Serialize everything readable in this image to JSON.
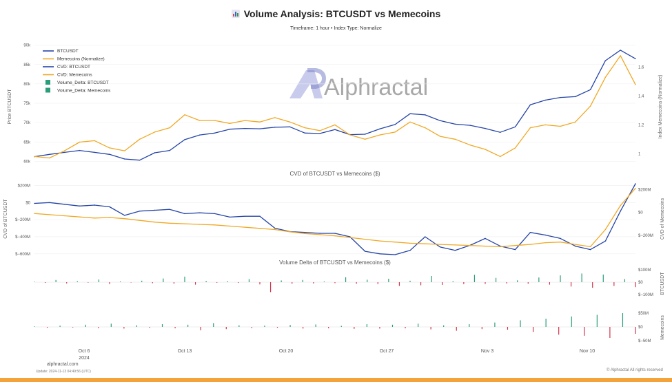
{
  "header": {
    "title": "Volume Analysis: BTCUSDT vs Memecoins",
    "subtitle": "Timeframe: 1 hour  •  Index Type: Normalize"
  },
  "watermark": {
    "text": "Alphractal"
  },
  "footer": {
    "site": "alphractal.com",
    "update": "Update: 2024-11-13 04:49:56 (UTC)",
    "rights": "© Alphractal All rights reserved"
  },
  "colors": {
    "btc": "#2444a6",
    "meme": "#f0a823",
    "pos": "#2a9d7a",
    "neg": "#d0344c",
    "grid": "#eeeeee",
    "accent": "#f4a23a"
  },
  "x_axis": {
    "ticks": [
      "Oct 6",
      "Oct 13",
      "Oct 20",
      "Oct 27",
      "Nov 3",
      "Nov 10"
    ],
    "year": "2024"
  },
  "chart_data": [
    {
      "id": "price",
      "type": "line",
      "title": "",
      "ylabel": "Price BTCUSDT",
      "y2label": "Index Memecoins (Normalize)",
      "ylim": [
        59000,
        91000
      ],
      "y2lim": [
        0.92,
        1.78
      ],
      "yticks": [
        "60k",
        "65k",
        "70k",
        "75k",
        "80k",
        "85k",
        "90k"
      ],
      "y2ticks": [
        "1",
        "1.2",
        "1.4",
        "1.6"
      ],
      "x": [
        "Oct 4",
        "Oct 5",
        "Oct 6",
        "Oct 7",
        "Oct 8",
        "Oct 9",
        "Oct 10",
        "Oct 11",
        "Oct 12",
        "Oct 13",
        "Oct 14",
        "Oct 15",
        "Oct 16",
        "Oct 17",
        "Oct 18",
        "Oct 19",
        "Oct 20",
        "Oct 21",
        "Oct 22",
        "Oct 23",
        "Oct 24",
        "Oct 25",
        "Oct 26",
        "Oct 27",
        "Oct 28",
        "Oct 29",
        "Oct 30",
        "Oct 31",
        "Nov 1",
        "Nov 2",
        "Nov 3",
        "Nov 4",
        "Nov 5",
        "Nov 6",
        "Nov 7",
        "Nov 8",
        "Nov 9",
        "Nov 10",
        "Nov 11",
        "Nov 12",
        "Nov 13"
      ],
      "legend": [
        "BTCUSDT",
        "Memecoins (Normalize)",
        "CVD: BTCUSDT",
        "CVD: Memecoins",
        "Volume_Delta: BTCUSDT",
        "Volume_Delta: Memecoins"
      ],
      "series": [
        {
          "name": "BTCUSDT",
          "axis": "left",
          "values": [
            61200,
            61800,
            62300,
            62800,
            62300,
            61800,
            60600,
            60300,
            62200,
            62800,
            65600,
            66800,
            67300,
            68300,
            68500,
            68400,
            68800,
            68900,
            67300,
            67200,
            68200,
            66900,
            67000,
            68400,
            69500,
            72300,
            72000,
            70500,
            69600,
            69300,
            68500,
            67500,
            68900,
            74600,
            75800,
            76500,
            76700,
            78500,
            86000,
            88700,
            86500
          ]
        },
        {
          "name": "Memecoins (Normalize)",
          "axis": "right",
          "values": [
            0.98,
            0.97,
            1.02,
            1.08,
            1.09,
            1.04,
            1.02,
            1.1,
            1.15,
            1.18,
            1.27,
            1.23,
            1.23,
            1.21,
            1.23,
            1.22,
            1.25,
            1.22,
            1.18,
            1.16,
            1.2,
            1.13,
            1.1,
            1.13,
            1.15,
            1.22,
            1.18,
            1.12,
            1.1,
            1.06,
            1.03,
            0.98,
            1.04,
            1.18,
            1.2,
            1.19,
            1.22,
            1.33,
            1.53,
            1.68,
            1.48
          ]
        }
      ]
    },
    {
      "id": "cvd",
      "type": "line",
      "title": "CVD of BTCUSDT vs Memecoins ($)",
      "ylabel": "CVD of BTCUSDT",
      "y2label": "CVD of Memecoins",
      "ylim": [
        -650,
        260
      ],
      "y2lim": [
        -400,
        280
      ],
      "unit": "$M",
      "yticks": [
        "$200M",
        "$0",
        "$−200M",
        "$−400M",
        "$−600M"
      ],
      "y2ticks": [
        "$200M",
        "$0",
        "$−200M"
      ],
      "series": [
        {
          "name": "CVD: BTCUSDT",
          "axis": "left",
          "values": [
            -10,
            0,
            -20,
            -40,
            -30,
            -50,
            -150,
            -100,
            -90,
            -80,
            -130,
            -120,
            -130,
            -170,
            -160,
            -160,
            -300,
            -340,
            -350,
            -360,
            -360,
            -400,
            -570,
            -600,
            -610,
            -560,
            -400,
            -520,
            -560,
            -500,
            -420,
            -510,
            -550,
            -350,
            -380,
            -420,
            -510,
            -550,
            -450,
            -100,
            220
          ]
        },
        {
          "name": "CVD: Memecoins",
          "axis": "right",
          "values": [
            -10,
            -20,
            -30,
            -40,
            -50,
            -45,
            -55,
            -70,
            -85,
            -95,
            -100,
            -105,
            -110,
            -120,
            -130,
            -140,
            -150,
            -170,
            -185,
            -195,
            -205,
            -220,
            -235,
            -250,
            -260,
            -270,
            -275,
            -280,
            -285,
            -290,
            -295,
            -300,
            -290,
            -280,
            -265,
            -260,
            -280,
            -300,
            -150,
            60,
            210
          ]
        }
      ]
    },
    {
      "id": "vd_btc",
      "type": "bar",
      "title": "Volume Delta of BTCUSDT vs Memecoins ($)",
      "ylabel": "BTCUSDT",
      "ylim": [
        -100,
        100
      ],
      "unit": "$M",
      "yticks": [
        "$100M",
        "$0",
        "$−100M"
      ],
      "series": [
        {
          "name": "Volume_Delta: BTCUSDT",
          "values": [
            4,
            -6,
            18,
            -10,
            8,
            -4,
            22,
            -15,
            6,
            -3,
            12,
            -8,
            30,
            -12,
            45,
            -20,
            10,
            -5,
            8,
            -6,
            25,
            -18,
            -80,
            14,
            -12,
            18,
            -10,
            6,
            -8,
            40,
            -12,
            20,
            -15,
            28,
            -30,
            12,
            -25,
            50,
            -22,
            8,
            -15,
            60,
            -14,
            35,
            -10,
            15,
            -12,
            38,
            -20,
            55,
            -35,
            70,
            -45,
            62,
            -30,
            25,
            -40
          ]
        }
      ]
    },
    {
      "id": "vd_meme",
      "type": "bar",
      "ylabel": "Memecoins",
      "ylim": [
        -50,
        50
      ],
      "unit": "$M",
      "yticks": [
        "$50M",
        "$0",
        "$−50M"
      ],
      "series": [
        {
          "name": "Volume_Delta: Memecoins",
          "values": [
            2,
            -3,
            5,
            -2,
            8,
            -4,
            12,
            -6,
            6,
            -3,
            10,
            -5,
            8,
            -12,
            14,
            -8,
            6,
            -4,
            5,
            -3,
            7,
            -6,
            9,
            -5,
            4,
            -7,
            10,
            -6,
            8,
            -5,
            12,
            -9,
            6,
            -14,
            10,
            -8,
            16,
            -10,
            24,
            -18,
            30,
            -28,
            38,
            -32,
            44,
            -40,
            50,
            -25
          ]
        }
      ]
    }
  ]
}
